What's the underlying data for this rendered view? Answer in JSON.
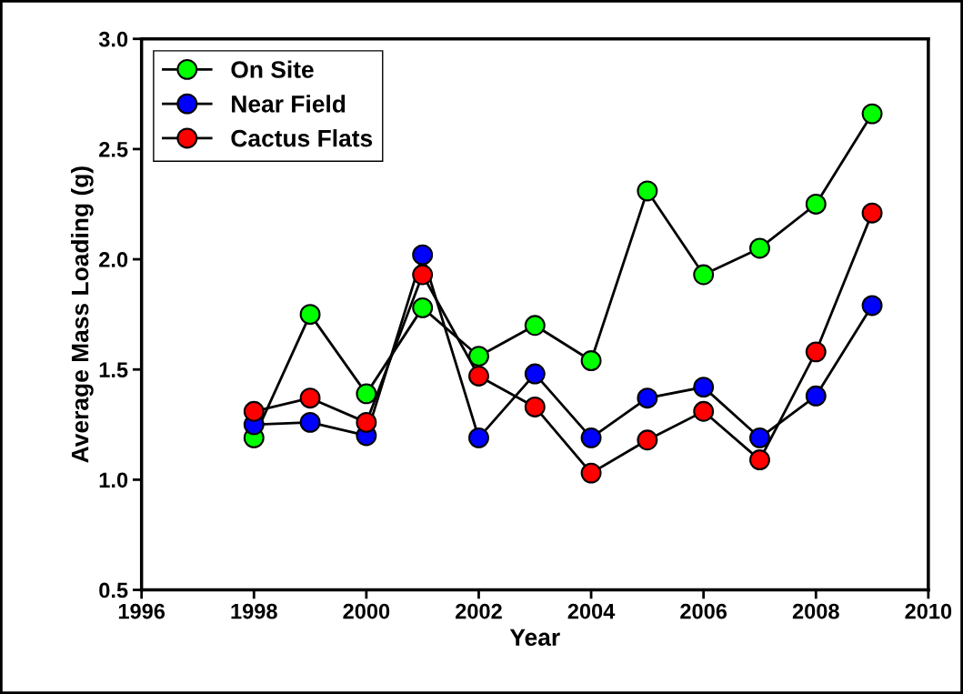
{
  "chart_data": {
    "type": "line",
    "xlabel": "Year",
    "ylabel": "Average Mass Loading (g)",
    "x": [
      1998,
      1999,
      2000,
      2001,
      2002,
      2003,
      2004,
      2005,
      2006,
      2007,
      2008,
      2009
    ],
    "series": [
      {
        "name": "On Site",
        "color": "#00ff00",
        "values": [
          1.19,
          1.75,
          1.39,
          1.78,
          1.56,
          1.7,
          1.54,
          2.31,
          1.93,
          2.05,
          2.25,
          2.66
        ]
      },
      {
        "name": "Near Field",
        "color": "#0000ff",
        "values": [
          1.25,
          1.26,
          1.2,
          2.02,
          1.19,
          1.48,
          1.19,
          1.37,
          1.42,
          1.19,
          1.38,
          1.79
        ]
      },
      {
        "name": "Cactus Flats",
        "color": "#ff0000",
        "values": [
          1.31,
          1.37,
          1.26,
          1.93,
          1.47,
          1.33,
          1.03,
          1.18,
          1.31,
          1.09,
          1.58,
          2.21
        ]
      }
    ],
    "xlim": [
      1996,
      2010
    ],
    "xticks": [
      1996,
      1998,
      2000,
      2002,
      2004,
      2006,
      2008,
      2010
    ],
    "ylim": [
      0.5,
      3.0
    ],
    "yticks": [
      {
        "value": 0.5,
        "label": "0.5"
      },
      {
        "value": 1.0,
        "label": "1.0"
      },
      {
        "value": 1.5,
        "label": "1.5"
      },
      {
        "value": 2.0,
        "label": "2.0"
      },
      {
        "value": 2.5,
        "label": "2.5"
      },
      {
        "value": 3.0,
        "label": "3.0"
      }
    ],
    "marker": "circle",
    "line_style": "solid",
    "legend": "top left",
    "grid": false
  }
}
